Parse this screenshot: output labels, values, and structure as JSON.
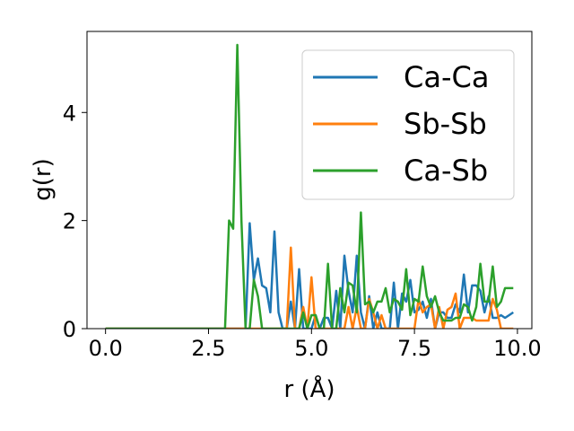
{
  "chart_data": {
    "type": "line",
    "title": "",
    "xlabel": "r (Å)",
    "ylabel": "g(r)",
    "xlim": [
      -0.45,
      10.35
    ],
    "ylim": [
      0,
      5.5
    ],
    "xticks": [
      0.0,
      2.5,
      5.0,
      7.5,
      10.0
    ],
    "xtick_labels": [
      "0.0",
      "2.5",
      "5.0",
      "7.5",
      "10.0"
    ],
    "yticks": [
      0,
      2,
      4
    ],
    "ytick_labels": [
      "0",
      "2",
      "4"
    ],
    "grid": false,
    "legend_position": "top-right",
    "series": [
      {
        "name": "Ca-Ca",
        "color": "#1f77b4",
        "x": [
          0.0,
          3.4,
          3.5,
          3.6,
          3.7,
          3.8,
          3.9,
          4.0,
          4.1,
          4.2,
          4.3,
          4.4,
          4.5,
          4.6,
          4.7,
          4.8,
          4.9,
          5.0,
          5.1,
          5.2,
          5.3,
          5.4,
          5.5,
          5.6,
          5.7,
          5.8,
          5.9,
          6.0,
          6.1,
          6.2,
          6.3,
          6.4,
          6.5,
          6.6,
          6.7,
          6.8,
          6.9,
          7.0,
          7.1,
          7.2,
          7.3,
          7.4,
          7.5,
          7.6,
          7.7,
          7.8,
          7.9,
          8.0,
          8.1,
          8.2,
          8.3,
          8.4,
          8.5,
          8.6,
          8.7,
          8.8,
          8.9,
          9.0,
          9.1,
          9.2,
          9.3,
          9.4,
          9.5,
          9.6,
          9.7,
          9.8,
          9.9
        ],
        "y": [
          0,
          0,
          1.95,
          0.9,
          1.3,
          0.8,
          0.75,
          0.3,
          1.8,
          0.3,
          0.0,
          0.0,
          0.5,
          0.0,
          1.1,
          0.0,
          0.0,
          0.0,
          0.25,
          0.0,
          0.2,
          0.2,
          0.0,
          0.7,
          0.0,
          1.35,
          0.7,
          0.3,
          1.35,
          0.3,
          0.0,
          0.6,
          0.0,
          0.3,
          0.0,
          0.0,
          0.0,
          0.85,
          0.0,
          0.65,
          0.5,
          0.9,
          0.3,
          0.35,
          0.5,
          0.2,
          0.55,
          0.0,
          0.3,
          0.3,
          0.2,
          0.2,
          0.45,
          0.3,
          1.0,
          0.3,
          0.8,
          0.8,
          0.7,
          0.3,
          0.6,
          0.2,
          0.2,
          0.25,
          0.2,
          0.25,
          0.3
        ]
      },
      {
        "name": "Sb-Sb",
        "color": "#ff7f0e",
        "x": [
          0.0,
          4.4,
          4.5,
          4.6,
          4.7,
          4.8,
          4.9,
          5.0,
          5.1,
          5.2,
          5.3,
          5.4,
          5.5,
          5.6,
          5.7,
          5.8,
          5.9,
          6.0,
          6.1,
          6.2,
          6.3,
          6.4,
          6.5,
          6.6,
          6.7,
          6.8,
          6.9,
          7.0,
          7.1,
          7.2,
          7.3,
          7.4,
          7.5,
          7.6,
          7.7,
          7.8,
          7.9,
          8.0,
          8.1,
          8.2,
          8.3,
          8.4,
          8.5,
          8.6,
          8.7,
          8.8,
          8.9,
          9.0,
          9.1,
          9.2,
          9.3,
          9.4,
          9.5,
          9.6,
          9.7,
          9.8,
          9.9
        ],
        "y": [
          0,
          0,
          1.5,
          0.0,
          0.0,
          0.4,
          0.0,
          0.95,
          0.0,
          0.0,
          0.0,
          0.0,
          0.0,
          0.0,
          0.0,
          0.0,
          0.4,
          0.0,
          0.4,
          0.0,
          0.0,
          0.55,
          0.3,
          0.0,
          0.25,
          0.0,
          0.0,
          0.0,
          0.0,
          0.0,
          0.0,
          0.0,
          0.0,
          0.55,
          0.3,
          0.4,
          0.45,
          0.0,
          0.4,
          0.0,
          0.35,
          0.4,
          0.65,
          0.0,
          0.2,
          0.2,
          0.2,
          0.15,
          0.15,
          0.15,
          0.15,
          0.55,
          0.35,
          0.0,
          0.0,
          0.0,
          0.0
        ]
      },
      {
        "name": "Ca-Sb",
        "color": "#2ca02c",
        "x": [
          0.0,
          2.9,
          3.0,
          3.1,
          3.2,
          3.3,
          3.4,
          3.5,
          3.6,
          3.7,
          3.8,
          3.9,
          4.0,
          4.1,
          4.2,
          4.3,
          4.4,
          4.5,
          4.6,
          4.7,
          4.8,
          4.9,
          5.0,
          5.1,
          5.2,
          5.3,
          5.4,
          5.5,
          5.6,
          5.7,
          5.8,
          5.9,
          6.0,
          6.1,
          6.2,
          6.3,
          6.4,
          6.5,
          6.6,
          6.7,
          6.8,
          6.9,
          7.0,
          7.1,
          7.2,
          7.3,
          7.4,
          7.5,
          7.6,
          7.7,
          7.8,
          7.9,
          8.0,
          8.1,
          8.2,
          8.3,
          8.4,
          8.5,
          8.6,
          8.7,
          8.8,
          8.9,
          9.0,
          9.1,
          9.2,
          9.3,
          9.4,
          9.5,
          9.6,
          9.7,
          9.8,
          9.9
        ],
        "y": [
          0,
          0,
          2.0,
          1.85,
          5.25,
          2.0,
          0.0,
          0.0,
          0.9,
          0.6,
          0.0,
          0.0,
          0.0,
          0.0,
          0.0,
          0.0,
          0.0,
          0.0,
          0.0,
          0.0,
          0.3,
          0.0,
          0.25,
          0.25,
          0.0,
          0.0,
          1.2,
          0.0,
          0.0,
          0.75,
          0.3,
          0.85,
          0.8,
          0.3,
          2.15,
          0.45,
          0.5,
          0.3,
          0.5,
          0.5,
          0.75,
          0.3,
          0.55,
          0.5,
          0.35,
          1.1,
          0.25,
          0.55,
          0.5,
          1.15,
          0.6,
          0.4,
          0.6,
          0.3,
          0.15,
          0.15,
          0.15,
          0.2,
          0.2,
          0.45,
          0.4,
          0.15,
          0.4,
          1.2,
          0.5,
          0.5,
          1.15,
          0.4,
          0.5,
          0.75,
          0.75,
          0.75
        ]
      }
    ]
  }
}
